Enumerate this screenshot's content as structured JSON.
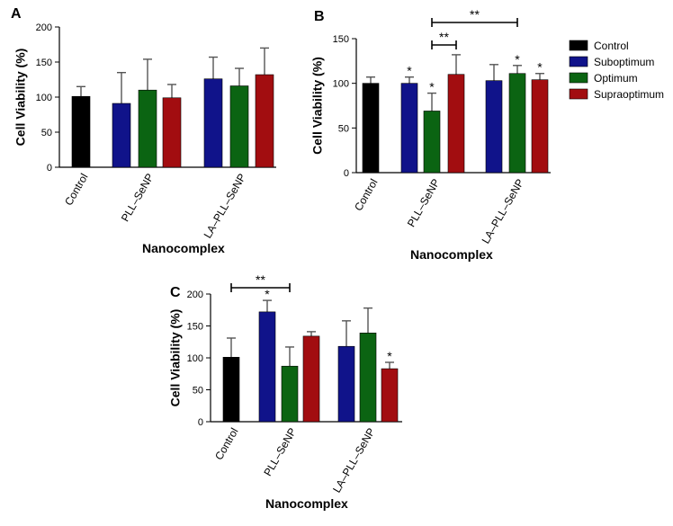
{
  "legend": [
    {
      "label": "Control",
      "color": "#000000"
    },
    {
      "label": "Suboptimum",
      "color": "#10138a"
    },
    {
      "label": "Optimum",
      "color": "#0b6412"
    },
    {
      "label": "Supraoptimum",
      "color": "#a20d10"
    }
  ],
  "chart_data": [
    {
      "panel": "A",
      "type": "bar",
      "xlabel": "Nanocomplex",
      "ylabel": "Cell Viability (%)",
      "ylim": [
        0,
        200
      ],
      "yticks": [
        0,
        50,
        100,
        150,
        200
      ],
      "categories": [
        "Control",
        "PLL–SeNP",
        "LA–PLL–SeNP"
      ],
      "series": [
        {
          "name": "Control",
          "values": [
            101,
            null,
            null
          ],
          "errors": [
            14,
            null,
            null
          ]
        },
        {
          "name": "Suboptimum",
          "values": [
            null,
            91,
            126
          ],
          "errors": [
            null,
            44,
            31
          ]
        },
        {
          "name": "Optimum",
          "values": [
            null,
            110,
            116
          ],
          "errors": [
            null,
            44,
            25
          ]
        },
        {
          "name": "Supraoptimum",
          "values": [
            null,
            99,
            132
          ],
          "errors": [
            null,
            19,
            38
          ]
        }
      ],
      "annotations": []
    },
    {
      "panel": "B",
      "type": "bar",
      "xlabel": "Nanocomplex",
      "ylabel": "Cell Viability (%)",
      "ylim": [
        0,
        150
      ],
      "yticks": [
        0,
        50,
        100,
        150
      ],
      "categories": [
        "Control",
        "PLL–SeNP",
        "LA–PLL–SeNP"
      ],
      "series": [
        {
          "name": "Control",
          "values": [
            100,
            null,
            null
          ],
          "errors": [
            7,
            null,
            null
          ]
        },
        {
          "name": "Suboptimum",
          "values": [
            null,
            100,
            103
          ],
          "errors": [
            null,
            7,
            18
          ]
        },
        {
          "name": "Optimum",
          "values": [
            null,
            69,
            111
          ],
          "errors": [
            null,
            20,
            9
          ]
        },
        {
          "name": "Supraoptimum",
          "values": [
            null,
            110,
            104
          ],
          "errors": [
            null,
            22,
            7
          ]
        }
      ],
      "annotations": [
        {
          "text": "*",
          "category": 1,
          "series": 1
        },
        {
          "text": "*",
          "category": 1,
          "series": 2
        },
        {
          "text": "*",
          "category": 2,
          "series": 2
        },
        {
          "text": "*",
          "category": 2,
          "series": 3
        }
      ],
      "brackets": [
        {
          "text": "**",
          "from": {
            "category": 1,
            "series": 2
          },
          "to": {
            "category": 1,
            "series": 3
          }
        },
        {
          "text": "**",
          "from": {
            "category": 1,
            "series": 2
          },
          "to": {
            "category": 2,
            "series": 2
          }
        }
      ]
    },
    {
      "panel": "C",
      "type": "bar",
      "xlabel": "Nanocomplex",
      "ylabel": "Cell Viability (%)",
      "ylim": [
        0,
        200
      ],
      "yticks": [
        0,
        50,
        100,
        150,
        200
      ],
      "categories": [
        "Control",
        "PLL–SeNP",
        "LA–PLL–SeNP"
      ],
      "series": [
        {
          "name": "Control",
          "values": [
            101,
            null,
            null
          ],
          "errors": [
            30,
            null,
            null
          ]
        },
        {
          "name": "Suboptimum",
          "values": [
            null,
            172,
            118
          ],
          "errors": [
            null,
            18,
            40
          ]
        },
        {
          "name": "Optimum",
          "values": [
            null,
            87,
            139
          ],
          "errors": [
            null,
            30,
            39
          ]
        },
        {
          "name": "Supraoptimum",
          "values": [
            null,
            134,
            83
          ],
          "errors": [
            null,
            7,
            10
          ]
        }
      ],
      "annotations": [
        {
          "text": "*",
          "category": 1,
          "series": 1
        },
        {
          "text": "*",
          "category": 2,
          "series": 3
        }
      ],
      "brackets": [
        {
          "text": "**",
          "from": {
            "category": 0,
            "series": 0
          },
          "to": {
            "category": 1,
            "series": 2
          }
        }
      ]
    }
  ]
}
